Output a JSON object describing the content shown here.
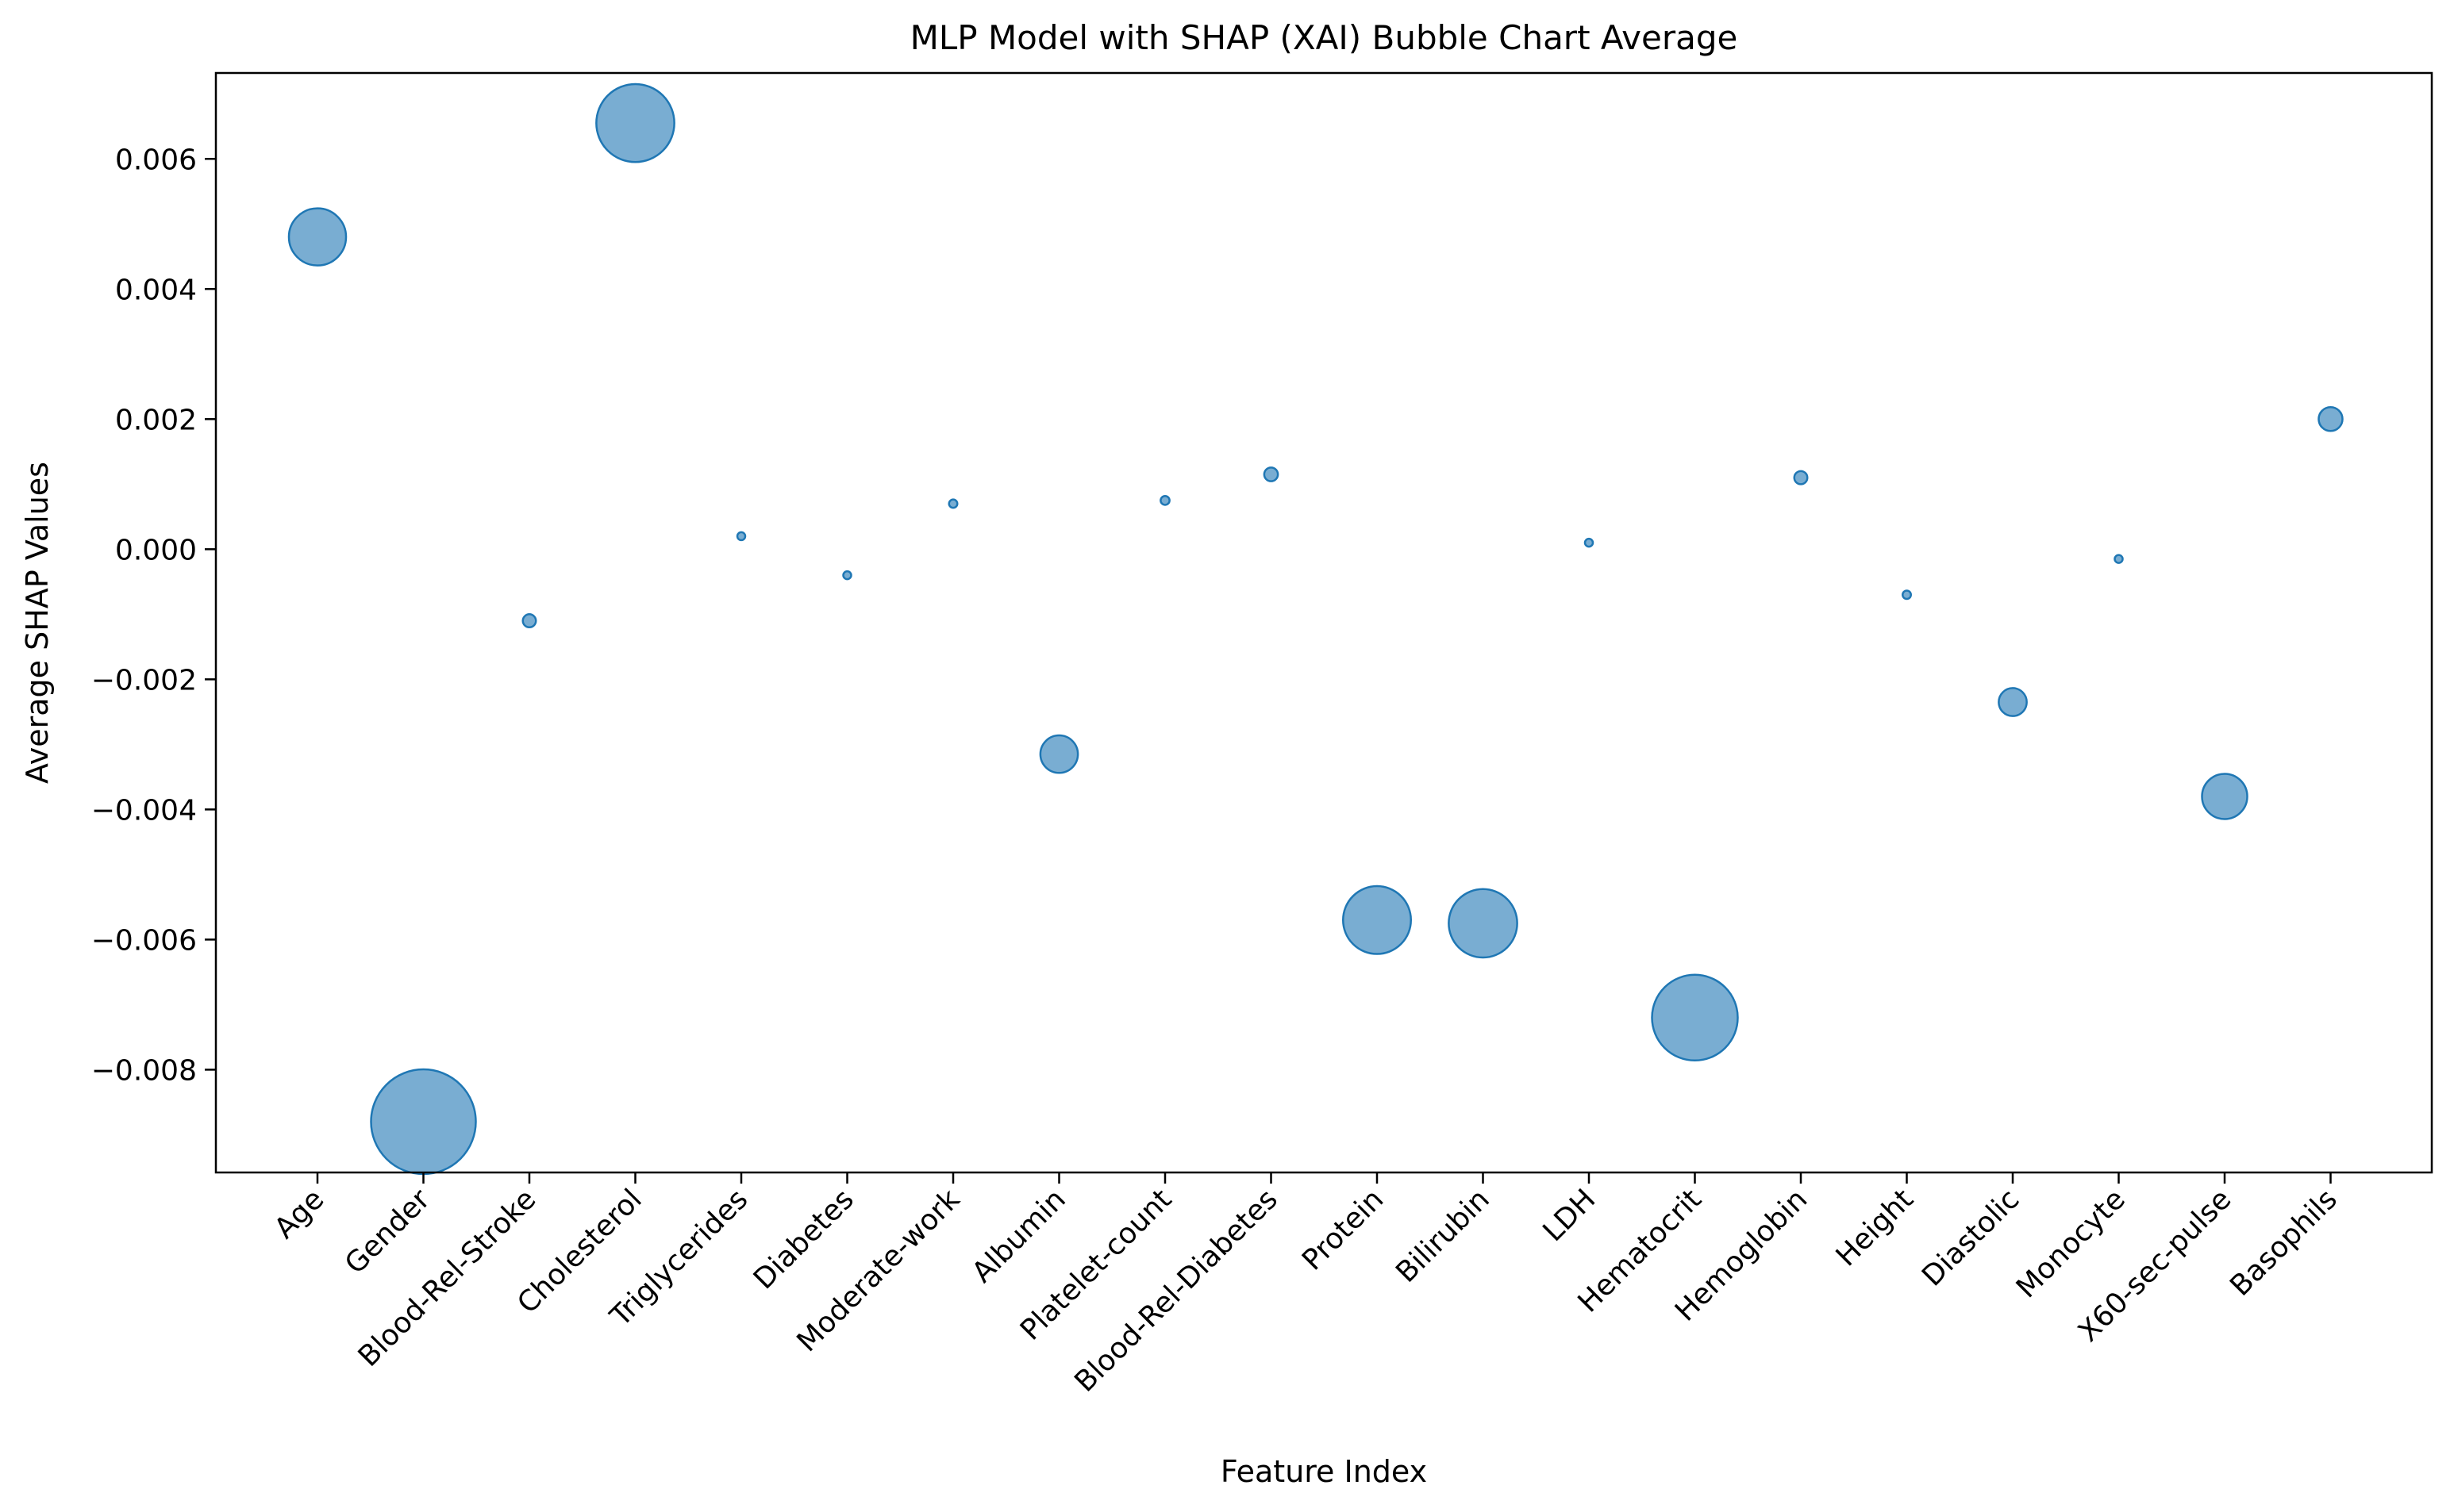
{
  "chart_data": {
    "type": "scatter",
    "title": "MLP Model with SHAP (XAI) Bubble Chart Average",
    "xlabel": "Feature Index",
    "ylabel": "Average SHAP Values",
    "categories": [
      "Age",
      "Gender",
      "Blood-Rel-Stroke",
      "Cholesterol",
      "Triglycerides",
      "Diabetes",
      "Moderate-work",
      "Albumin",
      "Platelet-count",
      "Blood-Rel-Diabetes",
      "Protein",
      "Bilirubin",
      "LDH",
      "Hematocrit",
      "Hemoglobin",
      "Height",
      "Diastolic",
      "Monocyte",
      "X60-sec-pulse",
      "Basophils"
    ],
    "values": [
      0.0048,
      -0.0088,
      -0.0011,
      0.00655,
      0.0002,
      -0.0004,
      0.0007,
      -0.00315,
      0.00075,
      0.00115,
      -0.0057,
      -0.00575,
      0.0001,
      -0.0072,
      0.0011,
      -0.0007,
      -0.00235,
      -0.00015,
      -0.0038,
      0.002
    ],
    "ylim": [
      -0.00958,
      0.00732
    ],
    "yticks": [
      -0.008,
      -0.006,
      -0.004,
      -0.002,
      0.0,
      0.002,
      0.004,
      0.006
    ],
    "ytick_labels": [
      "−0.008",
      "−0.006",
      "−0.004",
      "−0.002",
      "0.000",
      "0.002",
      "0.004",
      "0.006"
    ],
    "bubble_color": "#1f77b4",
    "bubble_alpha": 0.6,
    "grid": false,
    "legend": "none"
  }
}
